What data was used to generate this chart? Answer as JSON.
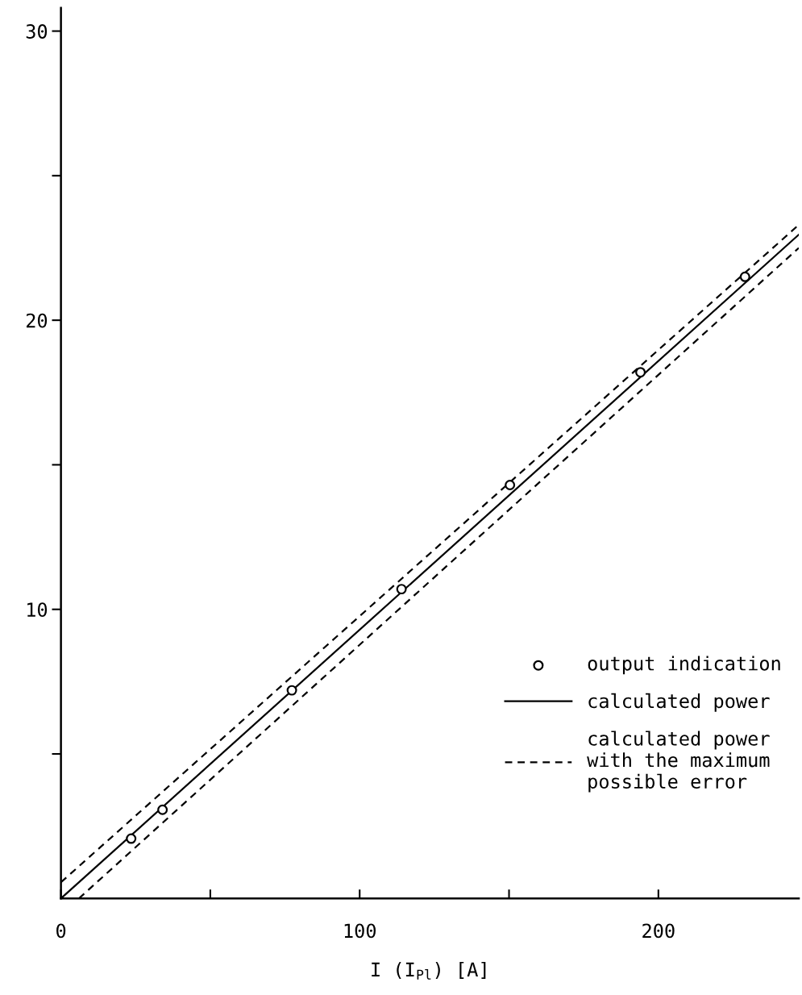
{
  "chart_data": {
    "type": "scatter",
    "xlabel": "I (I$_{Pl}$) [A]",
    "xlim": [
      0,
      247
    ],
    "ylim": [
      0,
      30.8
    ],
    "xticks": [
      0,
      {
        "value": 50,
        "label": null
      },
      100,
      {
        "value": 150,
        "label": null
      },
      200
    ],
    "yticks": [
      {
        "value": 5,
        "label": null
      },
      10,
      {
        "value": 15,
        "label": null
      },
      20,
      {
        "value": 25,
        "label": null
      },
      30
    ],
    "grid": false,
    "legend": "lower right",
    "series": [
      {
        "name": "output indication",
        "marker": "circle",
        "color": "#000000",
        "x": [
          23.5,
          34,
          77.3,
          114,
          150.3,
          194,
          229
        ],
        "values": [
          2.07,
          3.07,
          7.2,
          10.7,
          14.3,
          18.2,
          21.5
        ]
      },
      {
        "name": "calculated power",
        "type": "line",
        "line_style": "solid",
        "marker": "none",
        "color": "#000000",
        "x": [
          0,
          247
        ],
        "values": [
          0,
          22.96
        ]
      },
      {
        "name": "calculated power\nwith the maximum\npossible error",
        "type": "line",
        "line_style": "dashed",
        "marker": "none",
        "color": "#000000",
        "x": [
          0,
          247
        ],
        "values": [
          0.56,
          23.3
        ]
      },
      {
        "type": "line",
        "line_style": "dashed",
        "marker": "none",
        "color": "#000000",
        "x": [
          6,
          247
        ],
        "values": [
          0,
          22.5
        ]
      }
    ]
  }
}
